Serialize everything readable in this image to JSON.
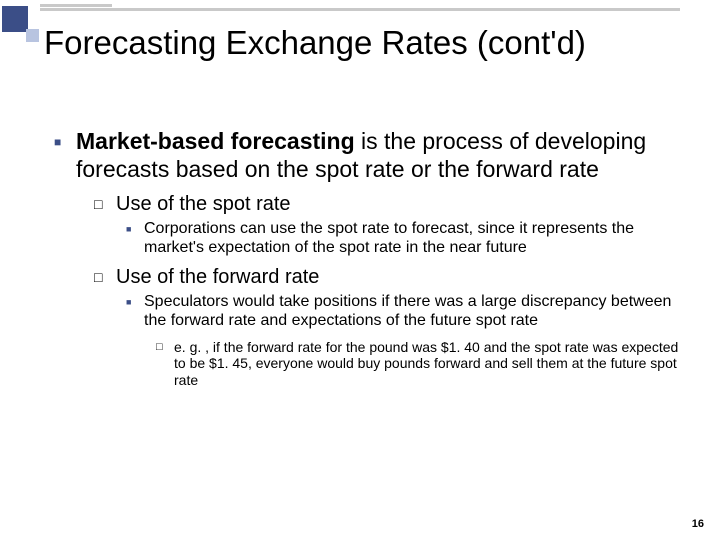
{
  "page_number": "16",
  "title": "Forecasting Exchange Rates (cont'd)",
  "level1": {
    "bold_lead": "Market-based forecasting",
    "rest": " is the process of developing forecasts based on the spot rate or the forward rate"
  },
  "spot": {
    "heading": "Use of the spot rate",
    "detail": "Corporations can use the spot rate to forecast, since it represents the market's expectation of the spot rate in the near future"
  },
  "forward": {
    "heading": "Use of the forward rate",
    "detail": "Speculators would take positions if there was a large discrepancy between the forward rate and expectations of the future spot rate",
    "example": "e. g. , if the forward rate for the pound was $1. 40 and the spot rate was expected to be $1. 45, everyone would buy pounds forward and sell them at the future spot rate"
  },
  "style": {
    "accent_color": "#3b4e87",
    "light_accent": "#b8c4e0",
    "bar_color": "#c9c9c9",
    "background": "#ffffff",
    "title_fontsize": 33,
    "lvl1_fontsize": 23,
    "lvl2_fontsize": 20,
    "lvl3_fontsize": 16,
    "lvl4_fontsize": 14,
    "pagenum_fontsize": 11
  }
}
